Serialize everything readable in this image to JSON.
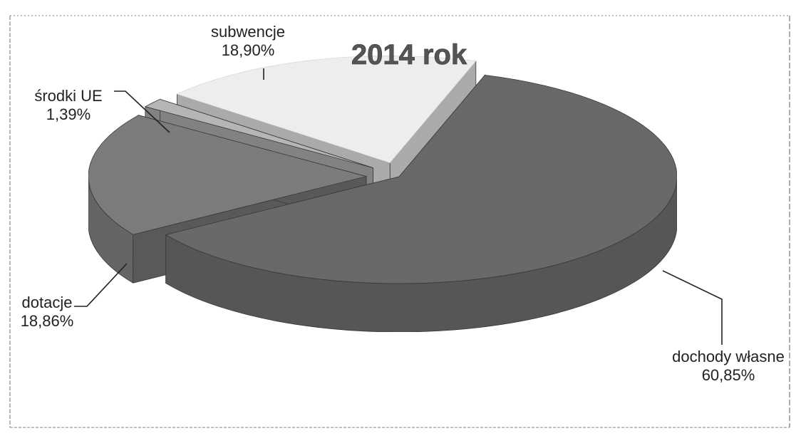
{
  "chart_data": {
    "type": "pie",
    "title": "2014 rok",
    "slices": [
      {
        "name": "dochody własne",
        "value_label": "60,85%",
        "value": 60.85,
        "color": "#6b6b6b",
        "exploded": false
      },
      {
        "name": "dotacje",
        "value_label": "18,86%",
        "value": 18.86,
        "color": "#7e7e7e",
        "exploded": true
      },
      {
        "name": "środki UE",
        "value_label": "1,39%",
        "value": 1.39,
        "color": "#b9b9b9",
        "exploded": true
      },
      {
        "name": "subwencje",
        "value_label": "18,90%",
        "value": 18.9,
        "color": "#f2f2f2",
        "exploded": true
      }
    ],
    "style": "3d-exploded",
    "legend": "none"
  }
}
